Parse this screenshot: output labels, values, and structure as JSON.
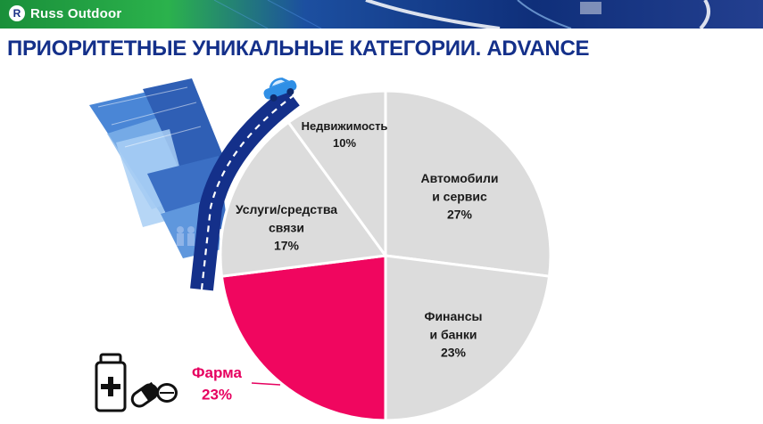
{
  "header": {
    "logo_text": "Russ Outdoor",
    "title": "ПРИОРИТЕТНЫЕ УНИКАЛЬНЫЕ КАТЕГОРИИ. ADVANCE"
  },
  "colors": {
    "slice_default": "#dcdcdc",
    "slice_highlight": "#f0065f",
    "brand_blue": "#14308a",
    "pharma_text": "#e6005f"
  },
  "icons": [
    "pill-bottle-icon",
    "pills-icon",
    "city-illustration-icon",
    "car-icon"
  ],
  "chart_data": {
    "type": "pie",
    "title": "",
    "slices": [
      {
        "label": [
          "Автомобили",
          "и сервис"
        ],
        "value": 27,
        "value_label": "27%",
        "highlight": false
      },
      {
        "label": [
          "Финансы",
          "и банки"
        ],
        "value": 23,
        "value_label": "23%",
        "highlight": false
      },
      {
        "label": [
          "Фарма"
        ],
        "value": 23,
        "value_label": "23%",
        "highlight": true
      },
      {
        "label": [
          "Услуги/средства",
          "связи"
        ],
        "value": 17,
        "value_label": "17%",
        "highlight": false
      },
      {
        "label": [
          "Недвижимость"
        ],
        "value": 10,
        "value_label": "10%",
        "highlight": false
      }
    ]
  }
}
